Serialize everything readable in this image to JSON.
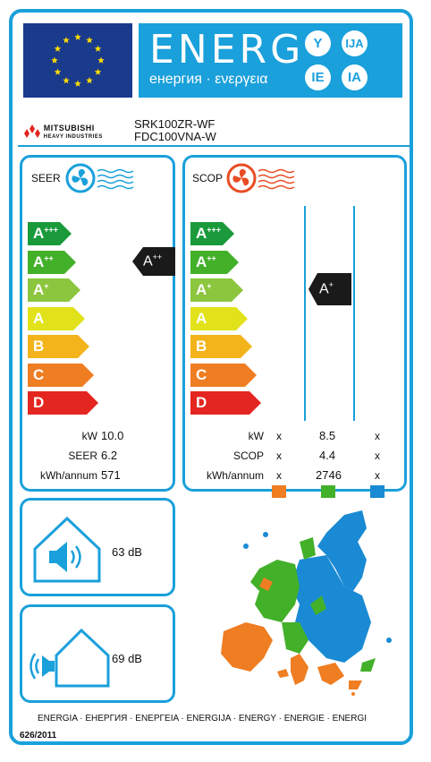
{
  "header": {
    "energy_title": "ENERG",
    "energy_subtitle": "енергия · ενεργεια",
    "lang_codes": [
      "Y",
      "IJA",
      "IE",
      "IA"
    ]
  },
  "brand": {
    "name_line1": "MITSUBISHI",
    "name_line2": "HEAVY INDUSTRIES"
  },
  "models": {
    "indoor": "SRK100ZR-WF",
    "outdoor": "FDC100VNA-W"
  },
  "scale_classes": [
    {
      "base": "A",
      "sup": "+++",
      "color": "#1a9a3b"
    },
    {
      "base": "A",
      "sup": "++",
      "color": "#43b02a"
    },
    {
      "base": "A",
      "sup": "+",
      "color": "#8cc63e"
    },
    {
      "base": "A",
      "sup": "",
      "color": "#e2e21a"
    },
    {
      "base": "B",
      "sup": "",
      "color": "#f3b41b"
    },
    {
      "base": "C",
      "sup": "",
      "color": "#ef7d22"
    },
    {
      "base": "D",
      "sup": "",
      "color": "#e32620"
    }
  ],
  "seer": {
    "label": "SEER",
    "rating_base": "A",
    "rating_sup": "++",
    "rows": [
      {
        "label": "kW",
        "value": "10.0"
      },
      {
        "label": "SEER",
        "value": "6.2"
      },
      {
        "label": "kWh/annum",
        "value": "571"
      }
    ]
  },
  "scop": {
    "label": "SCOP",
    "rating_base": "A",
    "rating_sup": "+",
    "rows": [
      {
        "label": "kW",
        "col1": "x",
        "col2": "8.5",
        "col3": "x"
      },
      {
        "label": "SCOP",
        "col1": "x",
        "col2": "4.4",
        "col3": "x"
      },
      {
        "label": "kWh/annum",
        "col1": "x",
        "col2": "2746",
        "col3": "x"
      }
    ],
    "zone_colors": [
      "#ef7d22",
      "#43b02a",
      "#1a8ad4"
    ]
  },
  "noise": {
    "indoor": "63 dB",
    "outdoor": "69 dB"
  },
  "footer": {
    "languages": "ENERGIA · ЕНЕРГИЯ · ΕΝΕΡΓΕΙΑ · ENERGIJA · ENERGY · ENERGIE · ENERGI",
    "regulation": "626/2011"
  },
  "colors": {
    "accent": "#1aa0db",
    "eu_blue": "#1a3a8c",
    "eu_star": "#ffdd00",
    "rating_tag": "#1a1a1a",
    "fan_blue": "#1aa0db",
    "fan_red": "#e84c24"
  }
}
